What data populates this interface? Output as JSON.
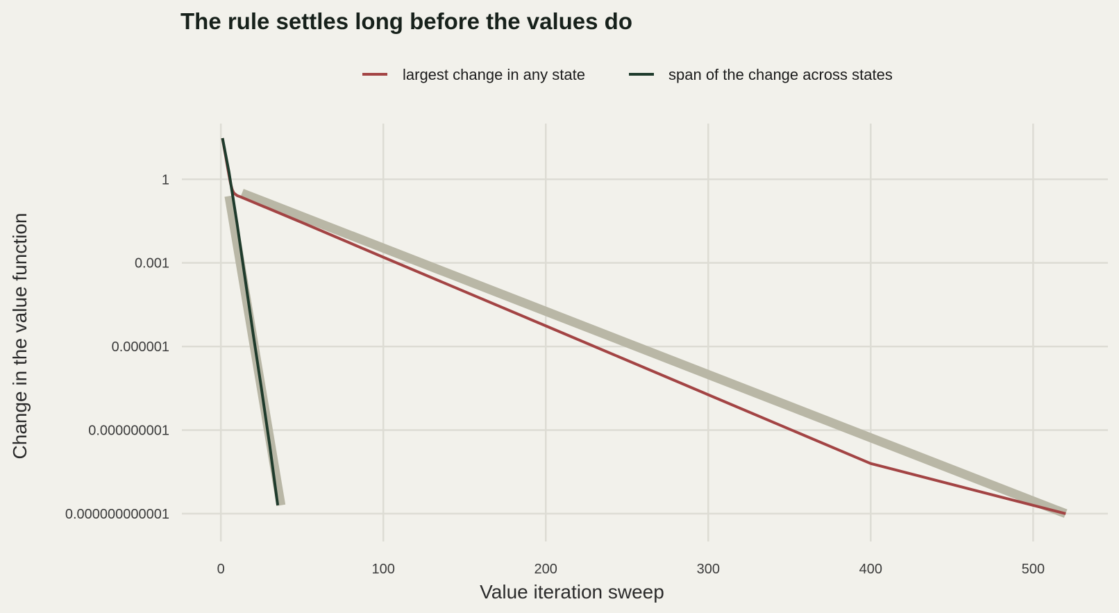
{
  "chart_data": {
    "type": "line",
    "title": "The rule settles long before the values do",
    "xlabel": "Value iteration sweep",
    "ylabel": "Change in the value function",
    "xlim": [
      -24,
      546
    ],
    "ylim": [
      1e-13,
      100
    ],
    "y_scale": "log",
    "x_ticks": [
      0,
      100,
      200,
      300,
      400,
      500
    ],
    "x_tick_labels": [
      "0",
      "100",
      "200",
      "300",
      "400",
      "500"
    ],
    "y_ticks": [
      1,
      0.001,
      1e-06,
      1e-09,
      1e-12
    ],
    "y_tick_labels": [
      "1",
      "0.001",
      "0.000001",
      "0.000000001",
      "0.000000000001"
    ],
    "grid": true,
    "legend_position": "top",
    "trend_band_color": "#b9b7a6",
    "background": "#f2f1eb",
    "grid_color": "#dddcd4",
    "series": [
      {
        "name": "largest change in any state",
        "color": "#a34444",
        "x": [
          1,
          2,
          3,
          4,
          5,
          6,
          7,
          8,
          10,
          12,
          20,
          50,
          100,
          200,
          300,
          400,
          520
        ],
        "y": [
          30,
          14,
          6.5,
          3,
          1.4,
          0.7,
          0.42,
          0.32,
          0.26,
          0.235,
          0.15,
          0.028,
          0.0016,
          5.5e-06,
          1.85e-08,
          6.3e-11,
          1e-12
        ],
        "trend": {
          "x": [
            13,
            520
          ],
          "y": [
            0.32,
            1e-12
          ]
        }
      },
      {
        "name": "span of the change across states",
        "color": "#1f3b2c",
        "x": [
          1,
          5,
          10,
          15,
          20,
          25,
          30,
          35
        ],
        "y": [
          30,
          1.8,
          0.025,
          0.00025,
          2.5e-06,
          3e-08,
          3e-10,
          2e-12
        ],
        "trend": {
          "x": [
            5,
            37
          ],
          "y": [
            0.25,
            2e-12
          ]
        }
      }
    ]
  }
}
